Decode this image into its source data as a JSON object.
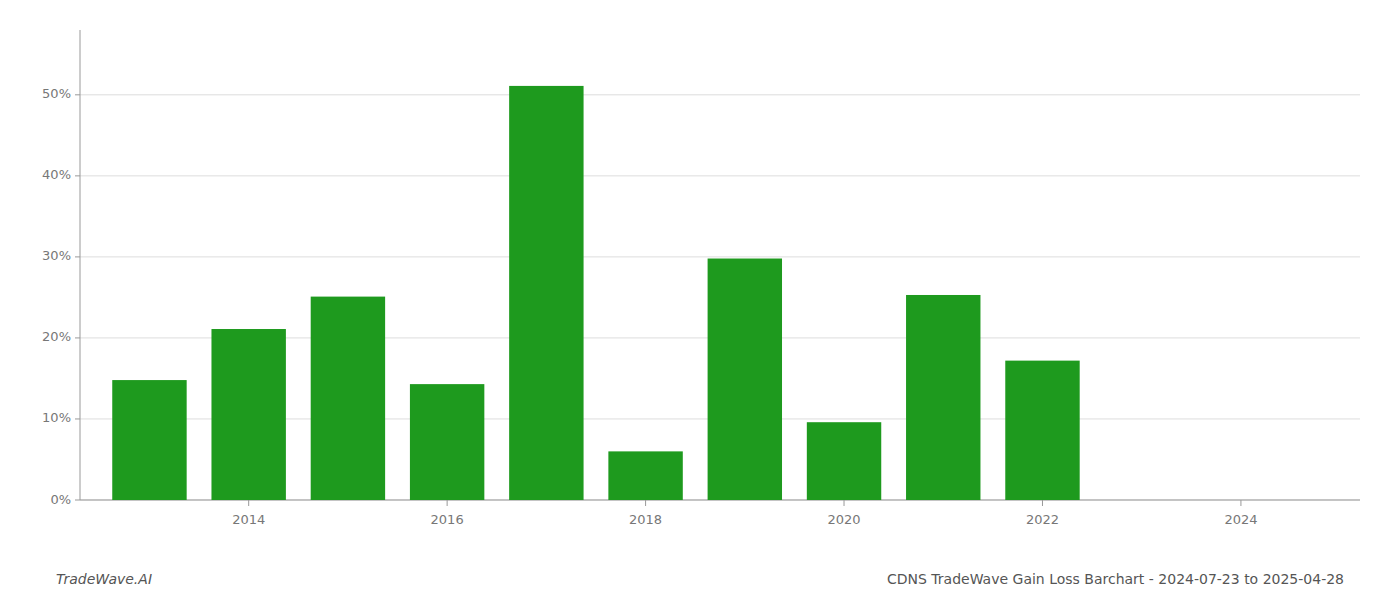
{
  "chart_data": {
    "type": "bar",
    "title": "CDNS TradeWave Gain Loss Barchart - 2024-07-23 to 2025-04-28",
    "annotations": [
      "TradeWave.AI"
    ],
    "x": [
      2013,
      2014,
      2015,
      2016,
      2017,
      2018,
      2019,
      2020,
      2021,
      2022
    ],
    "values": [
      0.148,
      0.211,
      0.251,
      0.143,
      0.511,
      0.06,
      0.298,
      0.096,
      0.253,
      0.172
    ],
    "color": "#1e9a1e",
    "xlim": [
      2012.3,
      2025.2
    ],
    "xticks": [
      2014,
      2016,
      2018,
      2020,
      2022,
      2024
    ],
    "ylim": [
      0,
      0.58
    ],
    "yticks": [
      {
        "value": 0.0,
        "label": "0%"
      },
      {
        "value": 0.1,
        "label": "10%"
      },
      {
        "value": 0.2,
        "label": "20%"
      },
      {
        "value": 0.3,
        "label": "30%"
      },
      {
        "value": 0.4,
        "label": "40%"
      },
      {
        "value": 0.5,
        "label": "50%"
      }
    ],
    "grid": true
  }
}
